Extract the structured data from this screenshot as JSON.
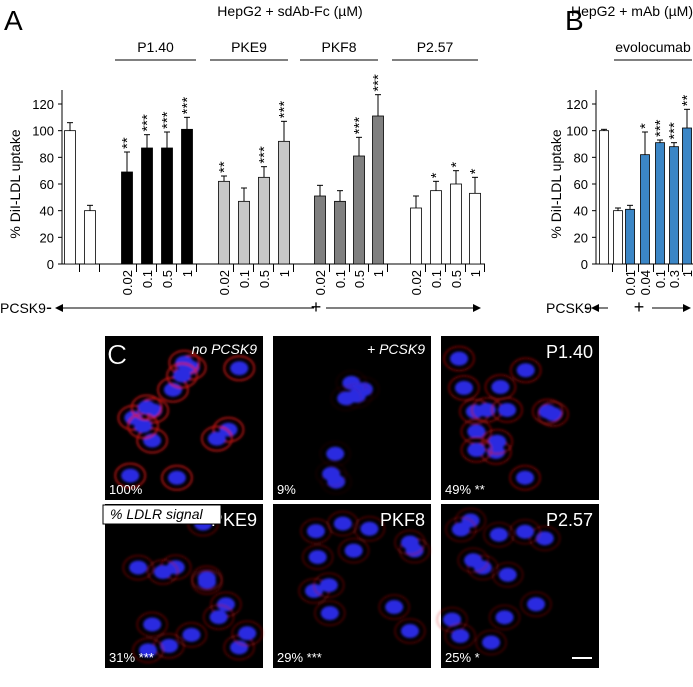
{
  "chart_data": [
    {
      "type": "bar",
      "panel_label": "A",
      "title": "HepG2 + sdAb-Fc (µM)",
      "y_label": "% DiI-LDL uptake",
      "groups": [
        "P1.40",
        "PKE9",
        "PKF8",
        "P2.57"
      ],
      "pcsk9_label": "PCSK9",
      "pcsk9_minus": "-",
      "pcsk9_plus": "+",
      "categories": [
        null,
        null,
        "0.02",
        "0.1",
        "0.5",
        "1",
        "0.02",
        "0.1",
        "0.5",
        "1",
        "0.02",
        "0.1",
        "0.5",
        "1",
        "0.02",
        "0.1",
        "0.5",
        "1"
      ],
      "values": [
        100,
        40,
        69,
        87,
        87,
        101,
        62,
        47,
        65,
        92,
        51,
        47,
        81,
        111,
        42,
        55,
        60,
        53
      ],
      "errors": [
        6,
        4,
        15,
        10,
        12,
        9,
        4,
        10,
        8,
        15,
        8,
        8,
        14,
        16,
        9,
        7,
        10,
        12
      ],
      "colors": [
        "#ffffff",
        "#ffffff",
        "#000000",
        "#000000",
        "#000000",
        "#000000",
        "#c8c8c8",
        "#c8c8c8",
        "#c8c8c8",
        "#c8c8c8",
        "#808080",
        "#808080",
        "#808080",
        "#808080",
        "#ffffff",
        "#ffffff",
        "#ffffff",
        "#ffffff"
      ],
      "annotations": [
        null,
        null,
        "**",
        "***",
        "***",
        "***",
        "**",
        null,
        "***",
        "***",
        null,
        null,
        "***",
        "***",
        null,
        "*",
        "*",
        "*"
      ],
      "ylim": [
        0,
        120
      ],
      "yticks": [
        0,
        20,
        40,
        60,
        80,
        100,
        120
      ]
    },
    {
      "type": "bar",
      "panel_label": "B",
      "title": "HepG2 + mAb (µM)",
      "y_label": "% DiI-LDL uptake",
      "groups": [
        "evolocumab"
      ],
      "pcsk9_label": "PCSK9",
      "pcsk9_minus": "-",
      "pcsk9_plus": "+",
      "categories": [
        null,
        null,
        "0.01",
        "0.04",
        "0.1",
        "0.3",
        "1"
      ],
      "values": [
        100,
        40,
        41,
        82,
        91,
        88,
        102
      ],
      "errors": [
        1,
        2,
        3,
        17,
        2,
        3,
        14
      ],
      "colors": [
        "#ffffff",
        "#ffffff",
        "#3b86c6",
        "#3b86c6",
        "#3b86c6",
        "#3b86c6",
        "#3b86c6"
      ],
      "annotations": [
        null,
        null,
        null,
        "*",
        "***",
        "***",
        "**"
      ],
      "ylim": [
        0,
        120
      ],
      "yticks": [
        0,
        20,
        40,
        60,
        80,
        100,
        120
      ]
    }
  ],
  "panel_c": {
    "panel_label": "C",
    "legend": "% LDLR signal",
    "images": [
      {
        "label": "no PCSK9",
        "signal": "100%"
      },
      {
        "label": "+ PCSK9",
        "signal": "9%"
      },
      {
        "label": "P1.40",
        "signal": "49% **"
      },
      {
        "label": "PKE9",
        "signal": "31% ***"
      },
      {
        "label": "PKF8",
        "signal": "29% ***"
      },
      {
        "label": "P2.57",
        "signal": "25% *"
      }
    ]
  }
}
